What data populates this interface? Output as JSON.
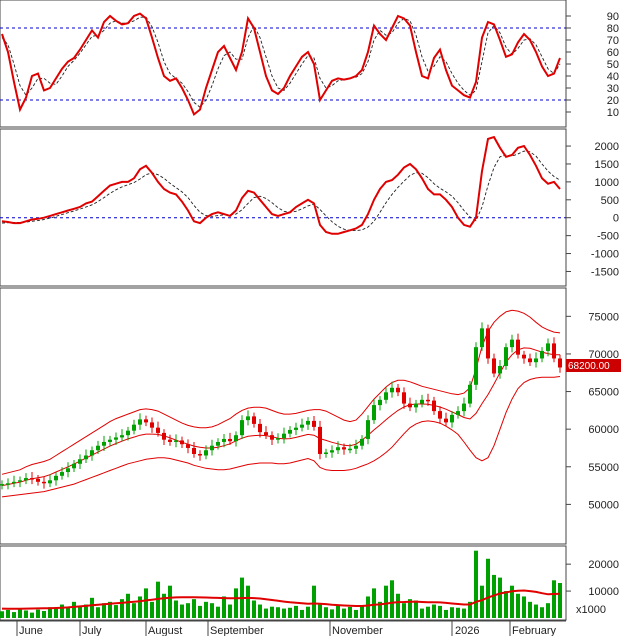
{
  "chart_data": {
    "type": "stock-chart",
    "colors": {
      "background": "#ffffff",
      "line": "#e00000",
      "signal": "#202020",
      "reference": "#0000cc",
      "up": "#00a000",
      "down": "#e00000",
      "volume": "#00a000",
      "price_tag": "#cc0000"
    },
    "months": [
      "June",
      "July",
      "August",
      "September",
      "November",
      "2026",
      "February"
    ],
    "rsi_panel": {
      "ticks": [
        "90",
        "80",
        "70",
        "60",
        "50",
        "40",
        "30",
        "20",
        "10"
      ],
      "ylim": [
        0,
        100
      ],
      "reference_lines": [
        80,
        20
      ],
      "values": [
        75,
        60,
        35,
        12,
        22,
        40,
        42,
        28,
        30,
        38,
        46,
        52,
        55,
        62,
        70,
        78,
        72,
        85,
        90,
        86,
        83,
        84,
        90,
        92,
        88,
        72,
        55,
        40,
        36,
        38,
        30,
        20,
        8,
        12,
        30,
        45,
        60,
        65,
        55,
        45,
        60,
        88,
        80,
        60,
        40,
        28,
        25,
        30,
        40,
        48,
        56,
        60,
        50,
        20,
        28,
        36,
        38,
        37,
        38,
        40,
        45,
        60,
        82,
        75,
        70,
        80,
        90,
        88,
        82,
        60,
        40,
        38,
        55,
        62,
        45,
        32,
        28,
        24,
        22,
        35,
        72,
        85,
        83,
        70,
        56,
        58,
        68,
        75,
        70,
        60,
        48,
        40,
        42,
        55
      ],
      "signal": [
        72,
        66,
        50,
        32,
        24,
        30,
        38,
        38,
        34,
        33,
        40,
        48,
        53,
        59,
        66,
        73,
        74,
        78,
        84,
        86,
        84,
        84,
        86,
        89,
        89,
        81,
        68,
        52,
        42,
        38,
        34,
        27,
        18,
        14,
        20,
        32,
        46,
        57,
        60,
        54,
        54,
        72,
        82,
        72,
        56,
        40,
        30,
        28,
        34,
        42,
        50,
        57,
        55,
        38,
        30,
        32,
        36,
        37,
        38,
        39,
        42,
        52,
        70,
        78,
        74,
        76,
        84,
        88,
        86,
        74,
        56,
        44,
        48,
        56,
        52,
        42,
        34,
        28,
        24,
        28,
        52,
        76,
        82,
        76,
        64,
        58,
        63,
        70,
        71,
        66,
        56,
        46,
        42,
        50
      ]
    },
    "macd_panel": {
      "ticks": [
        "2000",
        "1500",
        "1000",
        "500",
        "0",
        "-500",
        "-1000",
        "-1500"
      ],
      "ylim": [
        -1850,
        2420
      ],
      "reference_lines": [
        0
      ],
      "values": [
        -100,
        -120,
        -150,
        -150,
        -100,
        -50,
        -30,
        0,
        50,
        100,
        150,
        200,
        250,
        300,
        400,
        450,
        600,
        750,
        900,
        950,
        1000,
        1000,
        1100,
        1350,
        1450,
        1250,
        1000,
        800,
        700,
        650,
        450,
        200,
        -100,
        -150,
        0,
        100,
        150,
        100,
        50,
        200,
        550,
        750,
        700,
        500,
        300,
        100,
        50,
        100,
        150,
        300,
        400,
        500,
        400,
        -200,
        -400,
        -450,
        -450,
        -400,
        -350,
        -300,
        -200,
        100,
        500,
        800,
        1000,
        1050,
        1200,
        1400,
        1500,
        1350,
        1100,
        800,
        650,
        650,
        500,
        300,
        0,
        -200,
        -250,
        0,
        1300,
        2200,
        2250,
        1950,
        1700,
        1750,
        1950,
        2000,
        1750,
        1450,
        1100,
        950,
        1000,
        800
      ],
      "signal": [
        -150,
        -140,
        -130,
        -130,
        -120,
        -100,
        -80,
        -50,
        -10,
        40,
        90,
        140,
        190,
        240,
        300,
        360,
        450,
        560,
        680,
        780,
        860,
        920,
        980,
        1080,
        1200,
        1250,
        1200,
        1100,
        960,
        840,
        720,
        560,
        340,
        150,
        60,
        40,
        60,
        80,
        80,
        100,
        220,
        400,
        560,
        600,
        540,
        420,
        280,
        180,
        150,
        180,
        250,
        330,
        380,
        230,
        50,
        -110,
        -240,
        -320,
        -360,
        -360,
        -340,
        -260,
        -100,
        150,
        420,
        650,
        850,
        1020,
        1180,
        1260,
        1240,
        1120,
        950,
        820,
        720,
        600,
        420,
        200,
        20,
        -80,
        300,
        900,
        1400,
        1700,
        1750,
        1720,
        1780,
        1860,
        1840,
        1720,
        1500,
        1300,
        1150,
        1050
      ]
    },
    "price_panel": {
      "ticks": [
        "75000",
        "70000",
        "65000",
        "60000",
        "55000",
        "50000"
      ],
      "ylim": [
        45000,
        78500
      ],
      "last_price": "68200.00",
      "close": [
        52700,
        52800,
        53000,
        53200,
        53500,
        53400,
        53000,
        52800,
        53200,
        53800,
        54300,
        54800,
        55400,
        56000,
        56500,
        57200,
        57800,
        58300,
        58600,
        58900,
        59200,
        59800,
        60600,
        61300,
        60900,
        60200,
        59500,
        58600,
        58300,
        58500,
        58000,
        57500,
        56700,
        56500,
        57200,
        57800,
        58300,
        58700,
        58400,
        59200,
        61200,
        61700,
        60700,
        59600,
        59200,
        58600,
        58800,
        59400,
        59900,
        60200,
        60600,
        61100,
        60300,
        56700,
        56900,
        57200,
        57600,
        57300,
        57400,
        57800,
        58700,
        61200,
        63200,
        63900,
        64900,
        65500,
        64900,
        63400,
        62900,
        63400,
        63900,
        63800,
        62400,
        61400,
        60900,
        61900,
        62400,
        63400,
        65900,
        70900,
        73400,
        69400,
        67400,
        68400,
        70900,
        71900,
        69900,
        69400,
        68900,
        69400,
        70400,
        71400,
        69400,
        68200
      ],
      "bb_upper": [
        54000,
        54200,
        54400,
        54600,
        55000,
        55300,
        55500,
        55700,
        56000,
        56500,
        57000,
        57500,
        58000,
        58500,
        59000,
        59500,
        60000,
        60500,
        61000,
        61400,
        61700,
        62000,
        62300,
        62600,
        62700,
        62600,
        62400,
        62000,
        61600,
        61200,
        60800,
        60500,
        60300,
        60200,
        60200,
        60300,
        60600,
        61000,
        61400,
        62000,
        62500,
        62800,
        62900,
        62900,
        62800,
        62500,
        62200,
        62000,
        62000,
        62100,
        62300,
        62500,
        62600,
        62600,
        62400,
        62000,
        61600,
        61200,
        61000,
        61200,
        62000,
        63000,
        64000,
        64800,
        65600,
        66200,
        66500,
        66500,
        66300,
        66000,
        65700,
        65500,
        65300,
        65100,
        64900,
        64700,
        64600,
        64800,
        65500,
        68000,
        71000,
        73000,
        74200,
        75000,
        75600,
        75800,
        75700,
        75400,
        74900,
        74200,
        73600,
        73200,
        72900,
        72800
      ],
      "bb_lower": [
        51000,
        51100,
        51200,
        51300,
        51400,
        51500,
        51600,
        51700,
        51900,
        52100,
        52300,
        52500,
        52700,
        53000,
        53300,
        53600,
        53900,
        54200,
        54500,
        54800,
        55100,
        55400,
        55600,
        55800,
        56000,
        56100,
        56200,
        56200,
        56100,
        55900,
        55700,
        55500,
        55200,
        55000,
        54800,
        54700,
        54600,
        54600,
        54700,
        54900,
        55100,
        55300,
        55400,
        55500,
        55500,
        55500,
        55400,
        55400,
        55500,
        55700,
        55900,
        56100,
        55800,
        54900,
        54600,
        54500,
        54500,
        54500,
        54600,
        54800,
        55100,
        55400,
        55800,
        56300,
        56900,
        57600,
        58500,
        59400,
        60200,
        60700,
        61000,
        61100,
        61000,
        60800,
        60400,
        59900,
        59300,
        58300,
        57200,
        56200,
        55800,
        56200,
        57800,
        60000,
        62200,
        64000,
        65400,
        66200,
        66600,
        66800,
        66900,
        66900,
        66900,
        67000
      ],
      "bb_middle": [
        52500,
        52650,
        52800,
        52950,
        53200,
        53400,
        53550,
        53700,
        53950,
        54300,
        54650,
        55000,
        55350,
        55750,
        56150,
        56550,
        56950,
        57350,
        57750,
        58100,
        58400,
        58700,
        58950,
        59200,
        59350,
        59350,
        59300,
        59100,
        58850,
        58550,
        58250,
        58000,
        57750,
        57600,
        57500,
        57500,
        57600,
        57800,
        58050,
        58450,
        58800,
        59050,
        59150,
        59200,
        59150,
        59000,
        58800,
        58700,
        58750,
        58900,
        59100,
        59300,
        59200,
        58750,
        58500,
        58250,
        58050,
        57850,
        57800,
        58000,
        58550,
        59200,
        59900,
        60550,
        61250,
        61900,
        62500,
        62950,
        63250,
        63350,
        63350,
        63300,
        63150,
        62950,
        62650,
        62300,
        61950,
        61550,
        61350,
        62100,
        63400,
        64600,
        66000,
        67500,
        68900,
        69900,
        70550,
        70800,
        70750,
        70500,
        70250,
        70050,
        69900,
        69900
      ]
    },
    "volume_panel": {
      "ticks": [
        "20000",
        "10000"
      ],
      "unit": "x1000",
      "ylim": [
        0,
        26000
      ],
      "values": [
        2500,
        3000,
        2200,
        3500,
        2800,
        2000,
        3100,
        2600,
        4000,
        3500,
        5000,
        4200,
        6000,
        4500,
        5000,
        7500,
        4000,
        5500,
        6000,
        4800,
        7000,
        9000,
        5500,
        8000,
        11000,
        6000,
        13500,
        9000,
        12000,
        6500,
        5000,
        5500,
        7000,
        4500,
        6000,
        5500,
        4200,
        8000,
        5000,
        11000,
        15000,
        12000,
        6500,
        5000,
        3500,
        4200,
        4000,
        3500,
        3800,
        4500,
        3000,
        4200,
        12000,
        5000,
        4000,
        3200,
        4500,
        3500,
        4100,
        3000,
        4500,
        8000,
        11000,
        6000,
        12000,
        14000,
        9000,
        5500,
        7000,
        6500,
        3500,
        4200,
        5000,
        4500,
        3000,
        4000,
        3800,
        3500,
        6000,
        25000,
        12000,
        22000,
        16000,
        15000,
        10000,
        12000,
        9000,
        8000,
        6000,
        5000,
        4000,
        5500,
        14000,
        13000
      ],
      "average": [
        3500,
        3450,
        3420,
        3440,
        3480,
        3520,
        3560,
        3600,
        3650,
        3720,
        3820,
        3950,
        4120,
        4300,
        4500,
        4720,
        4920,
        5120,
        5300,
        5450,
        5620,
        5820,
        6000,
        6250,
        6550,
        6800,
        7100,
        7350,
        7550,
        7650,
        7700,
        7700,
        7700,
        7650,
        7600,
        7550,
        7450,
        7400,
        7300,
        7300,
        7400,
        7450,
        7400,
        7250,
        7000,
        6700,
        6400,
        6100,
        5850,
        5650,
        5450,
        5300,
        5400,
        5300,
        5150,
        4950,
        4800,
        4650,
        4550,
        4450,
        4450,
        4650,
        4900,
        5050,
        5350,
        5700,
        5900,
        5950,
        6050,
        6100,
        5950,
        5850,
        5850,
        5800,
        5600,
        5400,
        5200,
        5000,
        5000,
        6000,
        6600,
        7600,
        8400,
        9100,
        9500,
        9900,
        10100,
        10200,
        10000,
        9700,
        9200,
        8800,
        8900,
        9000
      ]
    }
  }
}
